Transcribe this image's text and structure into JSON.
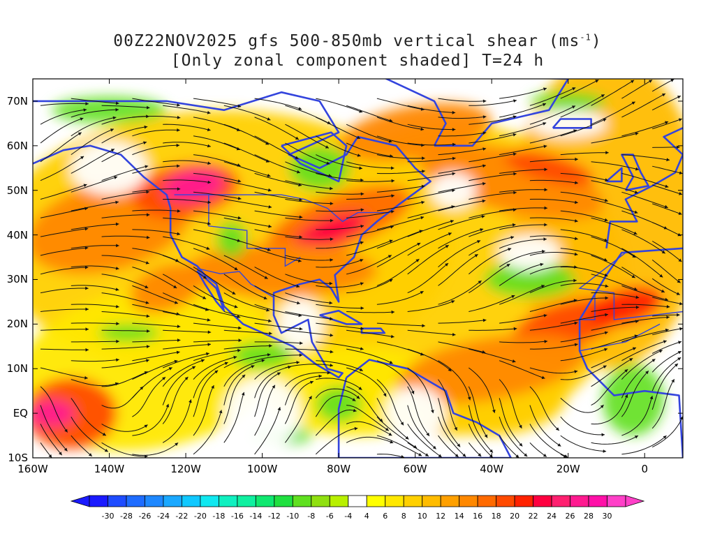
{
  "title_line1_pre": "00Z22NOV2025 gfs 500-850mb vertical shear (ms",
  "title_line1_sup": "-1",
  "title_line1_post": ")",
  "title_line2": "[Only zonal component shaded] T=24 h",
  "map": {
    "lon_range": [
      -160,
      10
    ],
    "lat_range": [
      -10,
      75
    ],
    "lat_ticks": [
      {
        "value": 70,
        "label": "70N"
      },
      {
        "value": 60,
        "label": "60N"
      },
      {
        "value": 50,
        "label": "50N"
      },
      {
        "value": 40,
        "label": "40N"
      },
      {
        "value": 30,
        "label": "30N"
      },
      {
        "value": 20,
        "label": "20N"
      },
      {
        "value": 10,
        "label": "10N"
      },
      {
        "value": 0,
        "label": "EQ"
      },
      {
        "value": -10,
        "label": "10S"
      }
    ],
    "lon_ticks": [
      {
        "value": -160,
        "label": "160W"
      },
      {
        "value": -140,
        "label": "140W"
      },
      {
        "value": -120,
        "label": "120W"
      },
      {
        "value": -100,
        "label": "100W"
      },
      {
        "value": -80,
        "label": "80W"
      },
      {
        "value": -60,
        "label": "60W"
      },
      {
        "value": -40,
        "label": "40W"
      },
      {
        "value": -20,
        "label": "20W"
      },
      {
        "value": 0,
        "label": "0"
      }
    ],
    "colors": {
      "coastline": "#3344dd",
      "streamline": "#111111",
      "background": "#ffffff"
    }
  },
  "colorbar": {
    "labels": [
      "-30",
      "-28",
      "-26",
      "-24",
      "-22",
      "-20",
      "-18",
      "-16",
      "-14",
      "-12",
      "-10",
      "-8",
      "-6",
      "-4",
      "4",
      "6",
      "8",
      "10",
      "12",
      "14",
      "16",
      "18",
      "20",
      "22",
      "24",
      "26",
      "28",
      "30"
    ],
    "colors": [
      "#1a1aff",
      "#1e4cff",
      "#1e6cff",
      "#1e88ff",
      "#1aa8ff",
      "#10c8ff",
      "#10e8f0",
      "#10f0c0",
      "#10f0a0",
      "#10e870",
      "#20e040",
      "#60e020",
      "#90e010",
      "#b8f000",
      "#ffffff",
      "#ffff00",
      "#ffe800",
      "#ffd000",
      "#ffbc00",
      "#ffa000",
      "#ff8800",
      "#ff6a00",
      "#ff4a00",
      "#ff2200",
      "#ff0040",
      "#ff2070",
      "#ff1a90",
      "#ff10a8",
      "#ff40c8"
    ]
  }
}
